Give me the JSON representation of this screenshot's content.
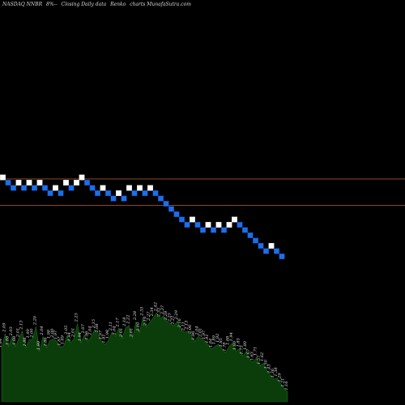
{
  "header": {
    "symbol": "NASDAQ NNBR",
    "change": "8%--",
    "caption": "Closing Daily data",
    "chart_kind": "Renko",
    "site": "charts MunafaSutra.com"
  },
  "colors": {
    "background": "#000000",
    "up_brick": "#ffffff",
    "down_brick": "#1e6fe6",
    "down_brick_border": "#0a3fa8",
    "resistance_line": "#a0522d",
    "volume_fill": "#0b3d0b",
    "volume_stroke": "#1a6b1a",
    "label_text": "#e0e0e0"
  },
  "chart_data": {
    "type": "renko",
    "bricks": [
      {
        "dir": "up",
        "level": 0
      },
      {
        "dir": "down",
        "level": -1
      },
      {
        "dir": "down",
        "level": -2
      },
      {
        "dir": "up",
        "level": -1
      },
      {
        "dir": "down",
        "level": -2
      },
      {
        "dir": "up",
        "level": -1
      },
      {
        "dir": "down",
        "level": -2
      },
      {
        "dir": "up",
        "level": -1
      },
      {
        "dir": "down",
        "level": -2
      },
      {
        "dir": "down",
        "level": -3
      },
      {
        "dir": "up",
        "level": -2
      },
      {
        "dir": "down",
        "level": -3
      },
      {
        "dir": "up",
        "level": -1
      },
      {
        "dir": "down",
        "level": -2
      },
      {
        "dir": "up",
        "level": -1
      },
      {
        "dir": "up",
        "level": 0
      },
      {
        "dir": "down",
        "level": -1
      },
      {
        "dir": "down",
        "level": -2
      },
      {
        "dir": "down",
        "level": -3
      },
      {
        "dir": "up",
        "level": -2
      },
      {
        "dir": "down",
        "level": -3
      },
      {
        "dir": "down",
        "level": -4
      },
      {
        "dir": "up",
        "level": -3
      },
      {
        "dir": "down",
        "level": -4
      },
      {
        "dir": "up",
        "level": -2
      },
      {
        "dir": "down",
        "level": -3
      },
      {
        "dir": "up",
        "level": -2
      },
      {
        "dir": "down",
        "level": -3
      },
      {
        "dir": "up",
        "level": -2
      },
      {
        "dir": "down",
        "level": -3
      },
      {
        "dir": "down",
        "level": -4
      },
      {
        "dir": "down",
        "level": -5
      },
      {
        "dir": "down",
        "level": -6
      },
      {
        "dir": "down",
        "level": -7
      },
      {
        "dir": "down",
        "level": -8
      },
      {
        "dir": "down",
        "level": -9
      },
      {
        "dir": "up",
        "level": -8
      },
      {
        "dir": "down",
        "level": -9
      },
      {
        "dir": "down",
        "level": -10
      },
      {
        "dir": "up",
        "level": -9
      },
      {
        "dir": "down",
        "level": -10
      },
      {
        "dir": "up",
        "level": -9
      },
      {
        "dir": "down",
        "level": -10
      },
      {
        "dir": "up",
        "level": -9
      },
      {
        "dir": "up",
        "level": -8
      },
      {
        "dir": "down",
        "level": -9
      },
      {
        "dir": "down",
        "level": -10
      },
      {
        "dir": "down",
        "level": -11
      },
      {
        "dir": "down",
        "level": -12
      },
      {
        "dir": "down",
        "level": -13
      },
      {
        "dir": "down",
        "level": -14
      },
      {
        "dir": "up",
        "level": -13
      },
      {
        "dir": "down",
        "level": -14
      },
      {
        "dir": "down",
        "level": -15
      }
    ],
    "reference_lines": [
      {
        "level": -0.3
      },
      {
        "level": -5.3
      }
    ],
    "volume_labels": [
      "1.84",
      "2.09",
      "1.88",
      "2.03",
      "1.88",
      "2.01",
      "2.13",
      "1.86",
      "1.99",
      "2.00",
      "2.20",
      "1.80",
      "2.04",
      "1.86",
      "1.98",
      "2.00",
      "1.97",
      "1.87",
      "1.89",
      "2.05",
      "1.94",
      "2.01",
      "2.25",
      "1.94",
      "2.07",
      "1.96",
      "2.04",
      "2.15",
      "2.08",
      "1.97",
      "1.91",
      "1.98",
      "2.11",
      "2.04",
      "2.17",
      "2.01",
      "2.18",
      "2.22",
      "2.01",
      "2.28",
      "2.10",
      "2.35",
      "2.19",
      "2.27",
      "2.34",
      "2.42",
      "2.33",
      "2.37",
      "2.28",
      "2.25",
      "2.21",
      "2.29",
      "2.16",
      "2.11",
      "2.13",
      "2.06",
      "1.96",
      "2.04",
      "2.01",
      "1.97",
      "1.91",
      "1.84",
      "1.89",
      "1.92",
      "1.85",
      "1.78",
      "1.88",
      "1.94",
      "1.80",
      "1.85",
      "1.73",
      "1.80",
      "1.67",
      "1.63",
      "1.71",
      "1.57",
      "1.62",
      "1.50",
      "1.43",
      "1.36",
      "1.38",
      "1.29",
      "1.21",
      "1.16"
    ],
    "volume_ylim": [
      1.0,
      2.5
    ]
  }
}
